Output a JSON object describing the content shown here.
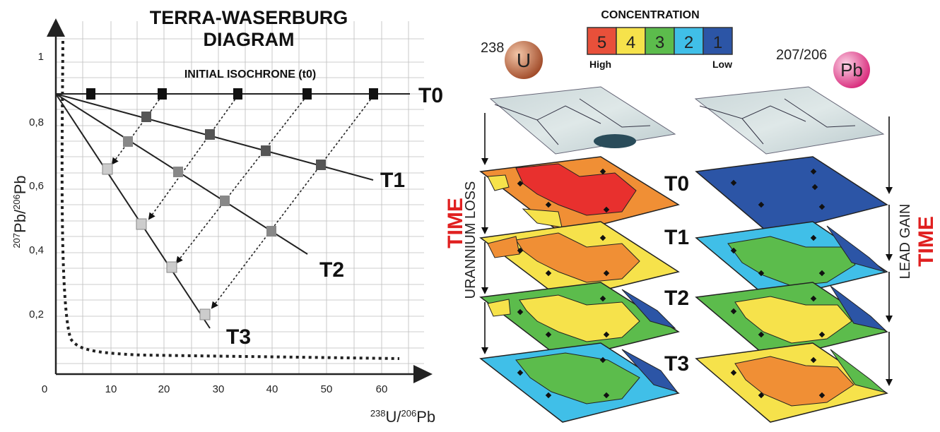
{
  "diagram": {
    "title_line1": "TERRA-WASERBURG",
    "title_line2": "DIAGRAM",
    "initial_isochrone_label": "INITIAL ISOCHRONE (t0)",
    "isochrone_labels": [
      "T0",
      "T1",
      "T2",
      "T3"
    ],
    "y_axis": {
      "label_pre": "207",
      "label_mid": "Pb/",
      "label_sup2": "206",
      "label_end": "Pb",
      "ticks": [
        "1",
        "0,8",
        "0,6",
        "0,4",
        "0,2"
      ]
    },
    "x_axis": {
      "label_sup": "238",
      "label_mid": "U/",
      "label_sup2": "206",
      "label_end": "Pb",
      "ticks": [
        "0",
        "10",
        "20",
        "30",
        "40",
        "50",
        "60"
      ]
    }
  },
  "legend": {
    "title": "CONCENTRATION",
    "levels": [
      {
        "value": "5",
        "color": "#e8503a"
      },
      {
        "value": "4",
        "color": "#f6e24b"
      },
      {
        "value": "3",
        "color": "#5cbc4c"
      },
      {
        "value": "2",
        "color": "#40bfe8"
      },
      {
        "value": "1",
        "color": "#2c55a6"
      }
    ],
    "high_label": "High",
    "low_label": "Low"
  },
  "uranium": {
    "mass": "238",
    "symbol": "U",
    "color": "#a04a28"
  },
  "lead": {
    "ratio": "207/206",
    "symbol": "Pb",
    "color": "#d8287a"
  },
  "left_axis": {
    "time": "TIME",
    "process": "URANNIUM LOSS"
  },
  "right_axis": {
    "time": "TIME",
    "process": "LEAD GAIN"
  },
  "layer_labels": [
    "T0",
    "T1",
    "T2",
    "T3"
  ]
}
